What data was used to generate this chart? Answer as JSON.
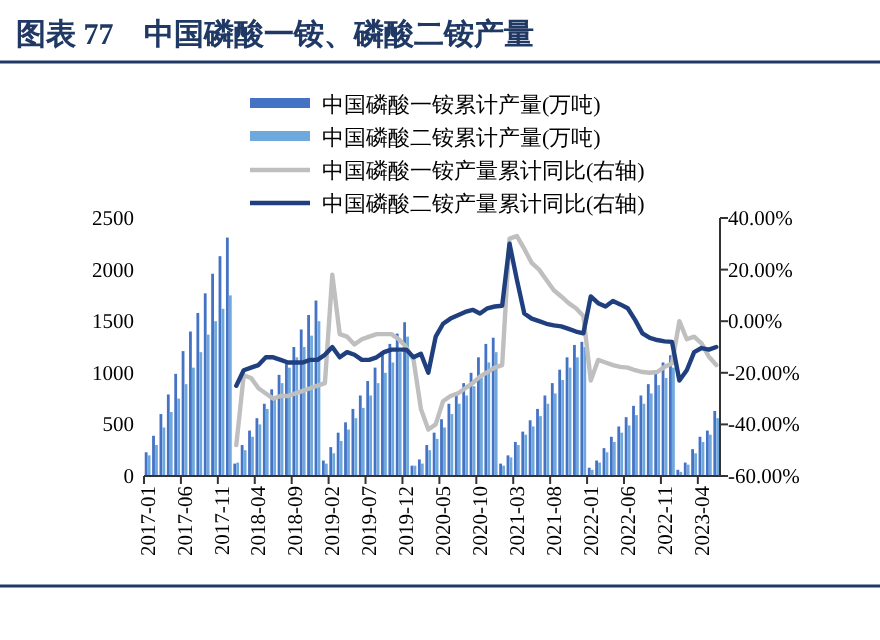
{
  "chart_data": {
    "type": "bar",
    "title": "图表 77　中国磷酸一铵、磷酸二铵产量",
    "categories": [
      "2017-01",
      null,
      null,
      null,
      null,
      "2017-06",
      null,
      null,
      null,
      null,
      "2017-11",
      null,
      null,
      null,
      null,
      "2018-04",
      null,
      null,
      null,
      null,
      "2018-09",
      null,
      null,
      null,
      null,
      "2019-02",
      null,
      null,
      null,
      null,
      "2019-07",
      null,
      null,
      null,
      null,
      "2019-12",
      null,
      null,
      null,
      null,
      "2020-05",
      null,
      null,
      null,
      null,
      "2020-10",
      null,
      null,
      null,
      null,
      "2021-03",
      null,
      null,
      null,
      null,
      "2021-08",
      null,
      null,
      null,
      null,
      "2022-01",
      null,
      null,
      null,
      null,
      "2022-06",
      null,
      null,
      null,
      null,
      "2022-11",
      null,
      null,
      null,
      null,
      "2023-04",
      null,
      null
    ],
    "series": [
      {
        "name": "中国磷酸一铵累计产量(万吨)",
        "color": "#4472c4",
        "values": [
          230,
          390,
          600,
          790,
          990,
          1210,
          1400,
          1580,
          1770,
          1960,
          2130,
          2310,
          120,
          300,
          440,
          560,
          700,
          840,
          980,
          1100,
          1250,
          1420,
          1560,
          1700,
          150,
          280,
          420,
          520,
          650,
          780,
          920,
          1050,
          1180,
          1280,
          1380,
          1490,
          100,
          160,
          300,
          420,
          550,
          700,
          800,
          900,
          1000,
          1150,
          1280,
          1340,
          120,
          200,
          330,
          430,
          540,
          650,
          780,
          900,
          1030,
          1150,
          1270,
          1300,
          80,
          150,
          270,
          380,
          480,
          570,
          680,
          780,
          890,
          1000,
          1100,
          1170,
          60,
          130,
          260,
          380,
          440,
          630
        ]
      },
      {
        "name": "中国磷酸二铵累计产量(万吨)",
        "color": "#6fa8dc",
        "values": [
          200,
          300,
          470,
          620,
          750,
          890,
          1050,
          1200,
          1370,
          1500,
          1620,
          1750,
          130,
          250,
          380,
          500,
          650,
          770,
          900,
          1050,
          1150,
          1250,
          1360,
          1500,
          120,
          220,
          340,
          450,
          560,
          660,
          780,
          900,
          1000,
          1100,
          1200,
          1350,
          100,
          120,
          250,
          360,
          470,
          600,
          700,
          780,
          870,
          950,
          1100,
          1200,
          100,
          180,
          300,
          400,
          480,
          580,
          700,
          800,
          930,
          1050,
          1150,
          1250,
          60,
          130,
          230,
          330,
          420,
          490,
          590,
          700,
          800,
          880,
          950,
          1050,
          40,
          110,
          220,
          330,
          400,
          560
        ]
      },
      {
        "name": "中国磷酸一铵产量累计同比(右轴)",
        "type": "line",
        "axis": "y2",
        "color": "#bfbfbf",
        "values": [
          null,
          null,
          null,
          null,
          null,
          null,
          null,
          null,
          null,
          null,
          null,
          null,
          -48,
          -21,
          -22,
          -26,
          -28,
          -30,
          -29,
          -29,
          -28,
          -27,
          -26,
          -25,
          -24,
          18,
          -5,
          -6,
          -9,
          -7,
          -6,
          -5,
          -5,
          -5,
          -7,
          -10,
          -15,
          -34,
          -42,
          -40,
          -31,
          -29,
          -28,
          -26,
          -24,
          -21.5,
          -19.7,
          -18,
          -17,
          32,
          33,
          28,
          22.6,
          20,
          16,
          12,
          9.6,
          7,
          5,
          2,
          -23,
          -15,
          -16,
          -17,
          -17.7,
          -18,
          -19,
          -19.7,
          -20,
          -19.7,
          -17.7,
          -16.4,
          0,
          -7,
          -6,
          -8.6,
          -13.8,
          -17
        ]
      },
      {
        "name": "中国磷酸二铵产量累计同比(右轴)",
        "type": "line",
        "axis": "y2",
        "color": "#1f3f7f",
        "values": [
          null,
          null,
          null,
          null,
          null,
          null,
          null,
          null,
          null,
          null,
          null,
          null,
          -25,
          -19,
          -18,
          -17,
          -14,
          -14,
          -15,
          -16,
          -16,
          -16,
          -15,
          -15,
          -13,
          -10,
          -14,
          -12,
          -13,
          -15,
          -15,
          -14,
          -12,
          -11,
          -11,
          -11,
          -14,
          -12.6,
          -20,
          -6,
          -1,
          1,
          2.3,
          3.6,
          4.4,
          3,
          5,
          5.7,
          6,
          30,
          16,
          3,
          1,
          0,
          -1,
          -1.6,
          -2,
          -3,
          -4,
          -4.7,
          9.6,
          7,
          5.7,
          7.8,
          6.5,
          5,
          0.5,
          -4.7,
          -6.5,
          -7.3,
          -7.8,
          -8,
          -23,
          -19,
          -12,
          -10.4,
          -11,
          -10
        ]
      }
    ],
    "ylim": [
      0,
      2500
    ],
    "yticks": [
      0,
      500,
      1000,
      1500,
      2000,
      2500
    ],
    "y2lim": [
      -60,
      40
    ],
    "y2ticks": [
      {
        "value": -60,
        "label": "-60.00%"
      },
      {
        "value": -40,
        "label": "-40.00%"
      },
      {
        "value": -20,
        "label": "-20.00%"
      },
      {
        "value": 0,
        "label": "0.00%"
      },
      {
        "value": 20,
        "label": "20.00%"
      },
      {
        "value": 40,
        "label": "40.00%"
      }
    ],
    "legend": "top"
  }
}
